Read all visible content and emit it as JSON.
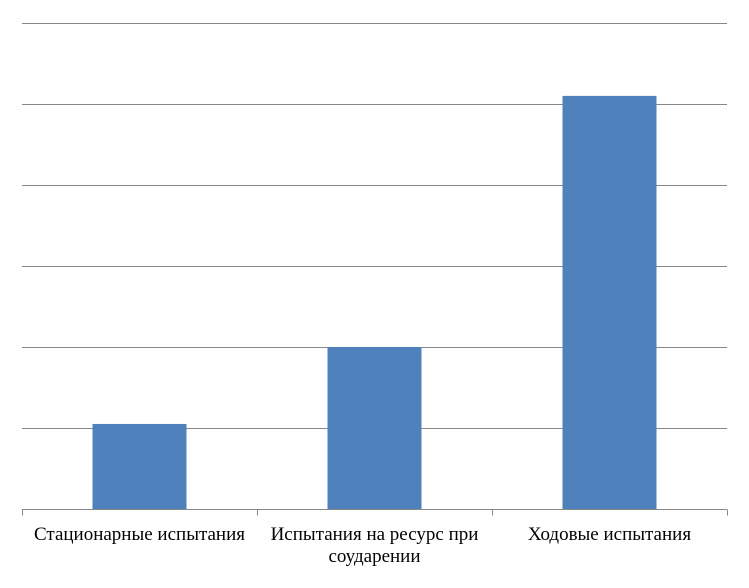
{
  "chart_data": {
    "type": "bar",
    "categories": [
      [
        "Стационарные испытания"
      ],
      [
        "Испытания на ресурс  при",
        "соударении"
      ],
      [
        "Ходовые испытания"
      ]
    ],
    "values": [
      1.05,
      2.0,
      5.1
    ],
    "ylim": [
      0,
      6
    ],
    "y_gridlines": [
      0,
      1,
      2,
      3,
      4,
      5,
      6
    ],
    "show_y_tick_labels": false,
    "grid": true,
    "legend": "none",
    "colors": {
      "bar": "#4F81BD",
      "grid": "#878787",
      "axis": "#878787",
      "text": "#000000"
    }
  }
}
